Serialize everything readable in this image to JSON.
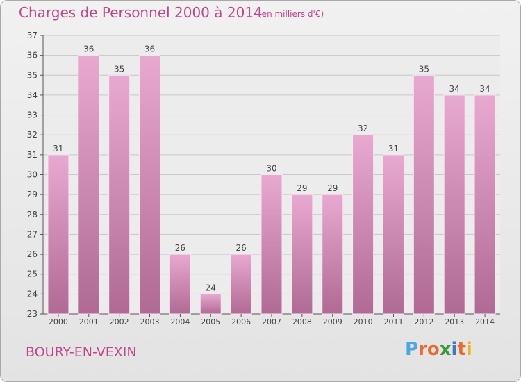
{
  "header": {
    "title": "Charges de Personnel 2000 à 2014",
    "unit": "(en milliers d'€)"
  },
  "footer": {
    "place": "BOURY-EN-VEXIN",
    "logo": "Proxiti"
  },
  "colors": {
    "title": "#c0468a",
    "bar_light": "#e8a9d0",
    "bar_dark": "#b06a94",
    "logo_letters": [
      "#4aa8e0",
      "#e96a2a",
      "#e96a2a",
      "#3a9a3a",
      "#3a78c8",
      "#e96a2a",
      "#f0b020"
    ]
  },
  "chart_data": {
    "type": "bar",
    "categories": [
      "2000",
      "2001",
      "2002",
      "2003",
      "2004",
      "2005",
      "2006",
      "2007",
      "2008",
      "2009",
      "2010",
      "2011",
      "2012",
      "2013",
      "2014"
    ],
    "values": [
      31,
      36,
      35,
      36,
      26,
      24,
      26,
      30,
      29,
      29,
      32,
      31,
      35,
      34,
      34
    ],
    "ylim": [
      23,
      37
    ],
    "yticks": [
      23,
      24,
      25,
      26,
      27,
      28,
      29,
      30,
      31,
      32,
      33,
      34,
      35,
      36,
      37
    ],
    "grid": true,
    "legend": "none"
  }
}
